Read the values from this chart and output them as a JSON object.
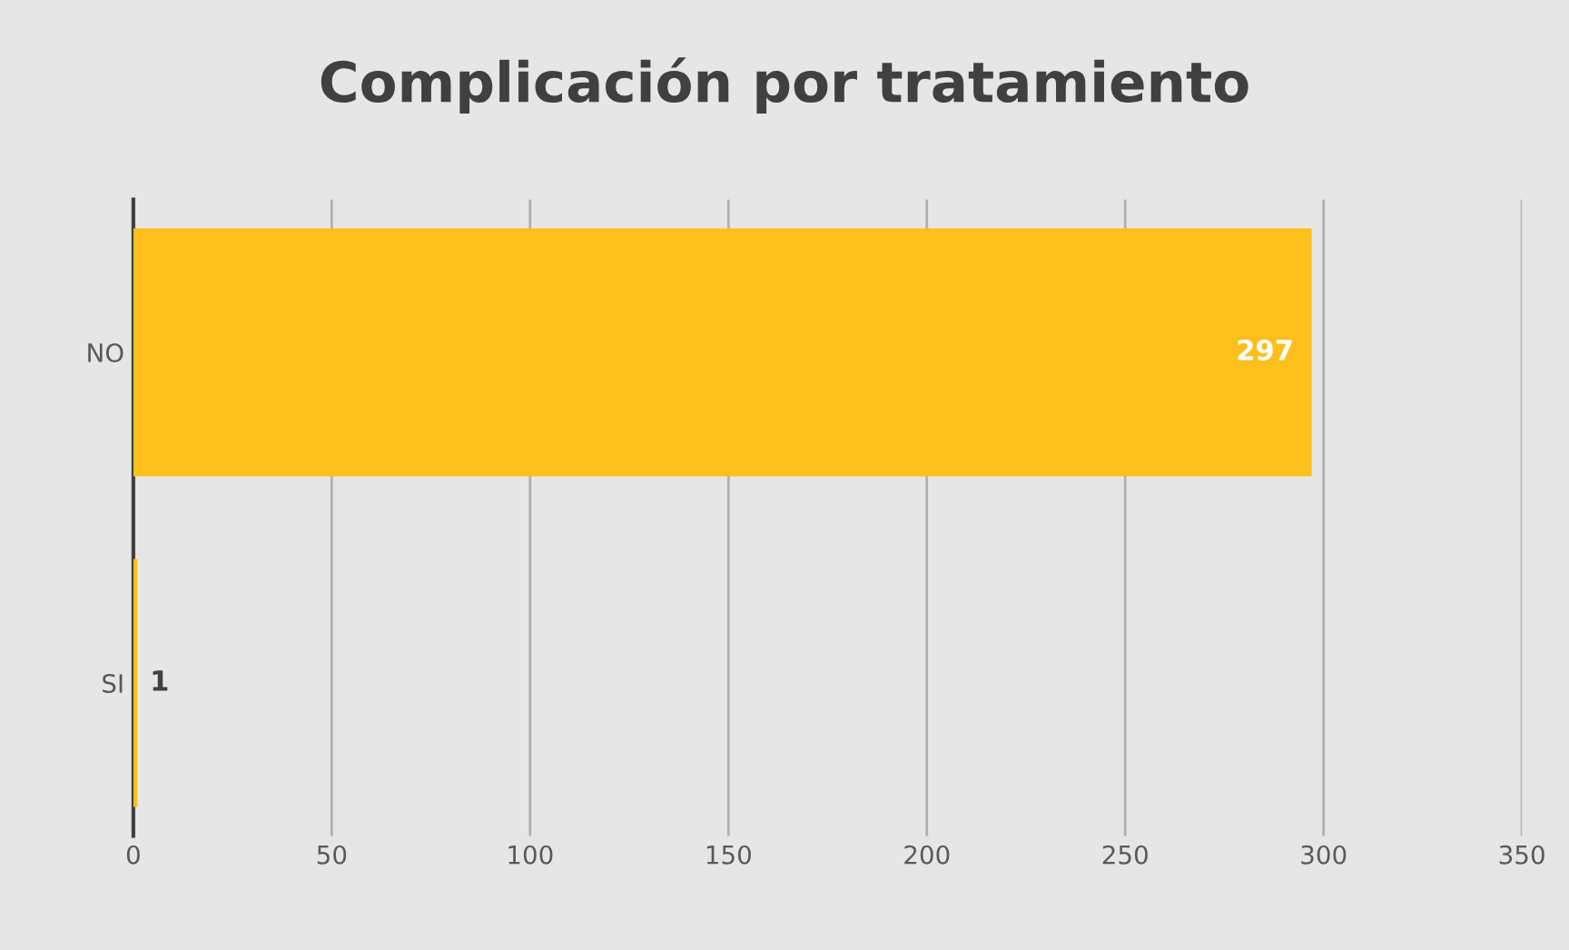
{
  "chart_data": {
    "type": "bar",
    "orientation": "horizontal",
    "title": "Complicación por tratamiento",
    "categories": [
      "NO",
      "SI"
    ],
    "values": [
      297,
      1
    ],
    "color": "#fbc01c",
    "xlim": [
      0,
      350
    ],
    "xticks": [
      0,
      50,
      100,
      150,
      200,
      250,
      300,
      350
    ],
    "grid": "x",
    "data_labels": true
  }
}
